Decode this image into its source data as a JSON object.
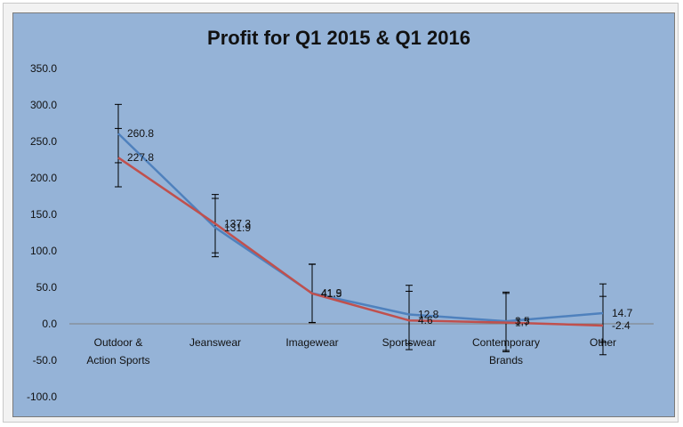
{
  "chart_data": {
    "type": "line",
    "title": "Profit  for Q1 2015 & Q1 2016",
    "xlabel": "",
    "ylabel": "",
    "categories": [
      "Outdoor & Action Sports",
      "Jeanswear",
      "Imagewear",
      "Sportswear",
      "Contemporary Brands",
      "Other"
    ],
    "category_lines": [
      [
        "Outdoor &",
        "Action Sports"
      ],
      [
        "Jeanswear"
      ],
      [
        "Imagewear"
      ],
      [
        "Sportswear"
      ],
      [
        "Contemporary",
        "Brands"
      ],
      [
        "Other"
      ]
    ],
    "ylim": [
      -100,
      350
    ],
    "yticks": [
      -100,
      -50,
      0,
      50,
      100,
      150,
      200,
      250,
      300,
      350
    ],
    "ytick_labels": [
      "-100.0",
      "-50.0",
      "0.0",
      "50.0",
      "100.0",
      "150.0",
      "200.0",
      "250.0",
      "300.0",
      "350.0"
    ],
    "error_bar": 40,
    "grid": false,
    "legend": "none",
    "series": [
      {
        "values": [
          260.8,
          131.9,
          41.9,
          12.8,
          3.5,
          14.7
        ],
        "labels": [
          "260.8",
          "131.9",
          "41.9",
          "12.8",
          "3.5",
          "14.7"
        ],
        "color": "#4f81bd"
      },
      {
        "values": [
          227.8,
          137.3,
          41.5,
          4.6,
          1.7,
          -2.4
        ],
        "labels": [
          "227.8",
          "137.3",
          "41.5",
          "4.6",
          "1.7",
          "-2.4"
        ],
        "color": "#c0504d"
      }
    ]
  }
}
